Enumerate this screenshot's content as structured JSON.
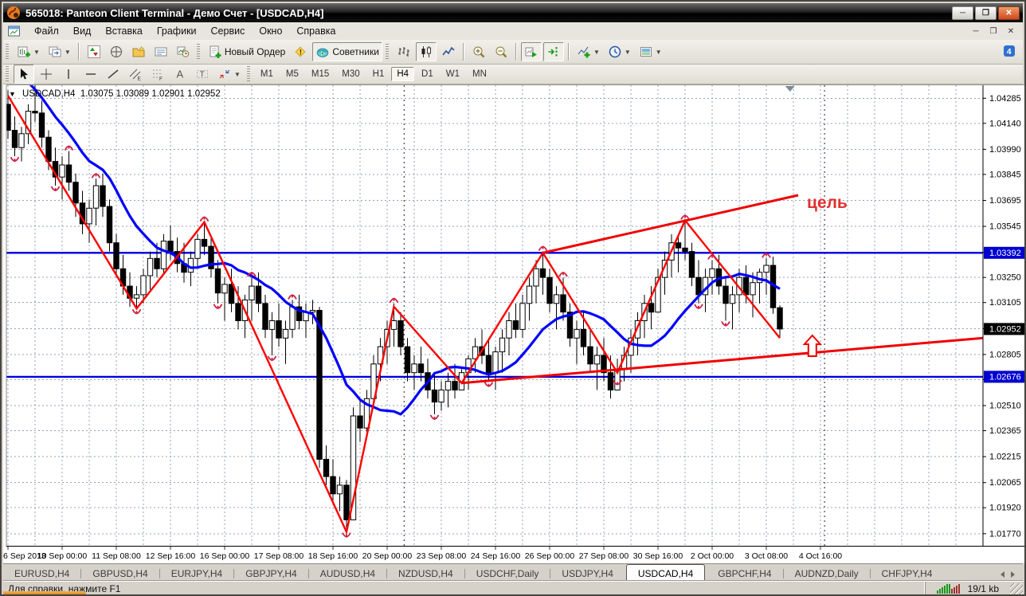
{
  "window": {
    "title": "565018: Panteon Client Terminal - Демо Счет - [USDCAD,H4]"
  },
  "menu": {
    "items": [
      "Файл",
      "Вид",
      "Вставка",
      "Графики",
      "Сервис",
      "Окно",
      "Справка"
    ],
    "window_controls": [
      "─",
      "❐",
      "✕"
    ],
    "title_controls": [
      "─",
      "❐",
      "✕"
    ]
  },
  "toolbar_main": {
    "groups": [
      {
        "grip": true,
        "items": [
          {
            "icon": "new-chart",
            "dropdown": true
          },
          {
            "icon": "profiles",
            "dropdown": true
          }
        ]
      },
      {
        "items": [
          {
            "icon": "market-watch"
          },
          {
            "icon": "data-window"
          },
          {
            "icon": "navigator"
          },
          {
            "icon": "terminal"
          },
          {
            "icon": "strategy-tester"
          }
        ]
      },
      {
        "grip": true,
        "items": [
          {
            "icon": "new-order",
            "label": "Новый Ордер"
          },
          {
            "icon": "alert"
          },
          {
            "icon": "expert-advisors",
            "label": "Советники",
            "pressed": true
          }
        ]
      },
      {
        "grip": true,
        "items": [
          {
            "icon": "chart-bars"
          },
          {
            "icon": "chart-candles",
            "pressed": true
          },
          {
            "icon": "chart-line"
          }
        ]
      },
      {
        "items": [
          {
            "icon": "zoom-in"
          },
          {
            "icon": "zoom-out"
          }
        ]
      },
      {
        "items": [
          {
            "icon": "auto-scroll",
            "pressed": true
          },
          {
            "icon": "chart-shift",
            "pressed": true
          }
        ]
      },
      {
        "items": [
          {
            "icon": "indicators",
            "dropdown": true
          },
          {
            "icon": "periods",
            "dropdown": true
          },
          {
            "icon": "templates",
            "dropdown": true
          }
        ]
      }
    ],
    "community_badge": "4"
  },
  "toolbar_tools": {
    "tools": [
      {
        "icon": "cursor",
        "pressed": true
      },
      {
        "icon": "crosshair"
      },
      {
        "icon": "vline"
      },
      {
        "icon": "hline"
      },
      {
        "icon": "trendline"
      },
      {
        "icon": "channel"
      },
      {
        "icon": "fibonacci"
      },
      {
        "icon": "text"
      },
      {
        "icon": "label"
      },
      {
        "icon": "shapes",
        "dropdown": true
      }
    ],
    "timeframes": [
      "M1",
      "M5",
      "M15",
      "M30",
      "H1",
      "H4",
      "D1",
      "W1",
      "MN"
    ],
    "active_timeframe": "H4"
  },
  "chart_data": {
    "type": "candlestick",
    "symbol": "USDCAD",
    "timeframe": "H4",
    "header_text": "USDCAD,H4  1.03075 1.03089 1.02901 1.02952",
    "header_marker": "▼",
    "last_bar": {
      "open": 1.03075,
      "high": 1.03089,
      "low": 1.02901,
      "close": 1.02952
    },
    "price_axis": {
      "pmax": 1.0436,
      "pmin": 1.017,
      "ticks": [
        1.04285,
        1.0414,
        1.0399,
        1.03845,
        1.03695,
        1.03545,
        1.03395,
        1.0325,
        1.03105,
        1.02955,
        1.02805,
        1.0266,
        1.0251,
        1.02365,
        1.02215,
        1.02065,
        1.0192,
        1.0177
      ],
      "badges": [
        {
          "value": "1.03392",
          "price": 1.03392,
          "color": "#0000d0"
        },
        {
          "value": "1.02952",
          "price": 1.02952,
          "color": "#000000"
        },
        {
          "value": "1.02676",
          "price": 1.02676,
          "color": "#0000d0"
        }
      ]
    },
    "time_axis": {
      "labels": [
        "6 Sep 2013",
        "10 Sep 00:00",
        "11 Sep 08:00",
        "12 Sep 16:00",
        "16 Sep 00:00",
        "17 Sep 08:00",
        "18 Sep 16:00",
        "20 Sep 00:00",
        "23 Sep 08:00",
        "24 Sep 16:00",
        "26 Sep 00:00",
        "27 Sep 08:00",
        "30 Sep 16:00",
        "2 Oct 00:00",
        "3 Oct 08:00",
        "4 Oct 16:00"
      ],
      "label_every_bars": 8
    },
    "first_open": 1.0425,
    "candles": [
      [
        1.0433,
        1.0405,
        1.041
      ],
      [
        1.0418,
        1.0395,
        1.04
      ],
      [
        1.0412,
        1.0392,
        1.0408
      ],
      [
        1.0425,
        1.0402,
        1.0421
      ],
      [
        1.0437,
        1.0415,
        1.042
      ],
      [
        1.0427,
        1.04,
        1.0406
      ],
      [
        1.041,
        1.0387,
        1.0392
      ],
      [
        1.04,
        1.0378,
        1.0383
      ],
      [
        1.0395,
        1.037,
        1.039
      ],
      [
        1.0398,
        1.0375,
        1.038
      ],
      [
        1.0385,
        1.036,
        1.0368
      ],
      [
        1.0375,
        1.035,
        1.0356
      ],
      [
        1.037,
        1.0345,
        1.0365
      ],
      [
        1.0382,
        1.0355,
        1.0378
      ],
      [
        1.0385,
        1.036,
        1.0366
      ],
      [
        1.037,
        1.034,
        1.0345
      ],
      [
        1.035,
        1.0325,
        1.033
      ],
      [
        1.0338,
        1.0315,
        1.032
      ],
      [
        1.0328,
        1.0308,
        1.0313
      ],
      [
        1.032,
        1.0307,
        1.0315
      ],
      [
        1.033,
        1.031,
        1.0326
      ],
      [
        1.034,
        1.0318,
        1.0336
      ],
      [
        1.0345,
        1.0325,
        1.033
      ],
      [
        1.035,
        1.0327,
        1.0346
      ],
      [
        1.0355,
        1.0335,
        1.034
      ],
      [
        1.0348,
        1.0328,
        1.0333
      ],
      [
        1.0345,
        1.0322,
        1.0328
      ],
      [
        1.034,
        1.032,
        1.0336
      ],
      [
        1.035,
        1.033,
        1.0347
      ],
      [
        1.0357,
        1.0338,
        1.0343
      ],
      [
        1.0348,
        1.0325,
        1.033
      ],
      [
        1.0335,
        1.031,
        1.0316
      ],
      [
        1.0325,
        1.03,
        1.0321
      ],
      [
        1.033,
        1.0305,
        1.031
      ],
      [
        1.032,
        1.0295,
        1.03
      ],
      [
        1.0315,
        1.029,
        1.0312
      ],
      [
        1.0325,
        1.03,
        1.032
      ],
      [
        1.0328,
        1.0305,
        1.031
      ],
      [
        1.0315,
        1.029,
        1.0295
      ],
      [
        1.0305,
        1.028,
        1.03
      ],
      [
        1.031,
        1.0285,
        1.029
      ],
      [
        1.03,
        1.0275,
        1.0295
      ],
      [
        1.0312,
        1.029,
        1.0308
      ],
      [
        1.0315,
        1.0295,
        1.03
      ],
      [
        1.031,
        1.029,
        1.0305
      ],
      [
        1.0312,
        1.0298,
        1.0306
      ],
      [
        1.0308,
        1.0215,
        1.022
      ],
      [
        1.0228,
        1.0205,
        1.021
      ],
      [
        1.022,
        1.0195,
        1.02
      ],
      [
        1.021,
        1.019,
        1.0205
      ],
      [
        1.0208,
        1.0178,
        1.0185
      ],
      [
        1.025,
        1.0185,
        1.0245
      ],
      [
        1.0255,
        1.023,
        1.0238
      ],
      [
        1.026,
        1.0235,
        1.0255
      ],
      [
        1.028,
        1.025,
        1.0275
      ],
      [
        1.029,
        1.0265,
        1.0285
      ],
      [
        1.03,
        1.0275,
        1.0295
      ],
      [
        1.031,
        1.0285,
        1.03
      ],
      [
        1.0305,
        1.028,
        1.0285
      ],
      [
        1.029,
        1.0265,
        1.027
      ],
      [
        1.028,
        1.026,
        1.0275
      ],
      [
        1.0285,
        1.0265,
        1.027
      ],
      [
        1.0278,
        1.0255,
        1.026
      ],
      [
        1.027,
        1.0246,
        1.0253
      ],
      [
        1.0265,
        1.0248,
        1.026
      ],
      [
        1.027,
        1.025,
        1.0265
      ],
      [
        1.0275,
        1.0255,
        1.026
      ],
      [
        1.0272,
        1.0264,
        1.027
      ],
      [
        1.028,
        1.026,
        1.0278
      ],
      [
        1.029,
        1.027,
        1.0285
      ],
      [
        1.0295,
        1.0275,
        1.028
      ],
      [
        1.029,
        1.0265,
        1.027
      ],
      [
        1.0285,
        1.026,
        1.0282
      ],
      [
        1.0295,
        1.027,
        1.029
      ],
      [
        1.0305,
        1.028,
        1.03
      ],
      [
        1.031,
        1.029,
        1.0295
      ],
      [
        1.0315,
        1.029,
        1.031
      ],
      [
        1.0325,
        1.03,
        1.032
      ],
      [
        1.0335,
        1.031,
        1.033
      ],
      [
        1.034,
        1.0315,
        1.0325
      ],
      [
        1.033,
        1.0305,
        1.031
      ],
      [
        1.032,
        1.0295,
        1.0315
      ],
      [
        1.0325,
        1.03,
        1.0305
      ],
      [
        1.031,
        1.0285,
        1.029
      ],
      [
        1.03,
        1.0275,
        1.0295
      ],
      [
        1.0305,
        1.028,
        1.0285
      ],
      [
        1.0295,
        1.027,
        1.0275
      ],
      [
        1.0285,
        1.026,
        1.028
      ],
      [
        1.029,
        1.0265,
        1.027
      ],
      [
        1.028,
        1.0255,
        1.026
      ],
      [
        1.0278,
        1.0266,
        1.0272
      ],
      [
        1.0285,
        1.0265,
        1.028
      ],
      [
        1.0295,
        1.027,
        1.029
      ],
      [
        1.0305,
        1.028,
        1.03
      ],
      [
        1.0315,
        1.029,
        1.031
      ],
      [
        1.032,
        1.0295,
        1.0305
      ],
      [
        1.033,
        1.0305,
        1.0325
      ],
      [
        1.034,
        1.0315,
        1.0335
      ],
      [
        1.035,
        1.0325,
        1.0345
      ],
      [
        1.035,
        1.0328,
        1.0342
      ],
      [
        1.0358,
        1.0335,
        1.034
      ],
      [
        1.0345,
        1.032,
        1.0325
      ],
      [
        1.0335,
        1.031,
        1.0315
      ],
      [
        1.033,
        1.0305,
        1.0325
      ],
      [
        1.0335,
        1.0315,
        1.033
      ],
      [
        1.0338,
        1.0315,
        1.032
      ],
      [
        1.0325,
        1.03,
        1.031
      ],
      [
        1.032,
        1.0295,
        1.0315
      ],
      [
        1.033,
        1.0305,
        1.0325
      ],
      [
        1.0332,
        1.031,
        1.0315
      ],
      [
        1.0328,
        1.0302,
        1.0322
      ],
      [
        1.033,
        1.031,
        1.0328
      ],
      [
        1.0336,
        1.0315,
        1.0332
      ],
      [
        1.0337,
        1.0304,
        1.03075
      ],
      [
        1.03089,
        1.02901,
        1.02952
      ]
    ],
    "ma": {
      "period": 13,
      "color": "#0000ff",
      "prehistory": [
        1.049,
        1.0485,
        1.048,
        1.0474,
        1.0468,
        1.0462,
        1.0456,
        1.045,
        1.0444,
        1.0438,
        1.0432,
        1.0427
      ]
    },
    "zigzag": {
      "color": "#ff0000",
      "points": [
        [
          0,
          1.043
        ],
        [
          19,
          1.0307
        ],
        [
          29,
          1.0357
        ],
        [
          50,
          1.0178
        ],
        [
          57,
          1.03081
        ],
        [
          67,
          1.0264
        ],
        [
          79,
          1.03392
        ],
        [
          90,
          1.027
        ],
        [
          100,
          1.0358
        ],
        [
          114,
          1.029
        ]
      ]
    },
    "trendlines": [
      {
        "from": [
          67,
          1.0264
        ],
        "to": [
          144,
          1.029
        ]
      },
      {
        "from": [
          79,
          1.03392
        ],
        "to": [
          116.7,
          1.03725
        ]
      }
    ],
    "hlines": [
      1.03392,
      1.02676
    ],
    "separator_bars": [
      58.5,
      120.6
    ],
    "fractals": {
      "up": [
        4,
        9,
        13,
        29,
        36,
        42,
        57,
        79,
        82,
        100,
        104,
        112
      ],
      "down": [
        1,
        7,
        19,
        31,
        39,
        50,
        63,
        71,
        90,
        102,
        106
      ]
    },
    "annotations": {
      "target_text": {
        "text": "цель",
        "bar": 118,
        "price": 1.0368,
        "color": "#e03030"
      },
      "arrow_up": {
        "bar": 118.8,
        "price": 1.02915
      }
    },
    "shift_marker_bar": 115.5,
    "grid": {
      "on": true,
      "v_every_bars": 4
    }
  },
  "tabs": {
    "items": [
      "EURUSD,H4",
      "GBPUSD,H4",
      "EURJPY,H4",
      "GBPJPY,H4",
      "AUDUSD,H4",
      "NZDUSD,H4",
      "USDCHF,Daily",
      "USDJPY,H4",
      "USDCAD,H4",
      "GBPCHF,H4",
      "AUDNZD,Daily",
      "CHFJPY,H4"
    ],
    "active": "USDCAD,H4"
  },
  "status": {
    "help_text": "Для справки, нажмите F1",
    "traffic": "19/1 kb"
  }
}
